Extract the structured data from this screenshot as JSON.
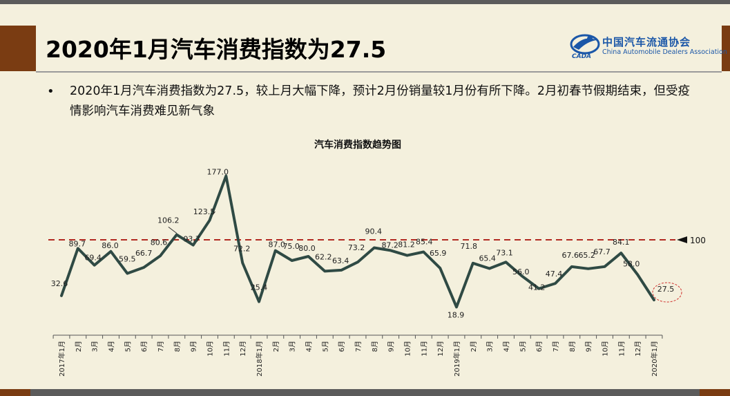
{
  "slide": {
    "title": "2020年1月汽车消费指数为27.5",
    "bullet": "2020年1月汽车消费指数为27.5，较上月大幅下降，预计2月份销量较1月份有所下降。2月初春节假期结束，但受疫情影响汽车消费难见新气象"
  },
  "logo": {
    "name_cn": "中国汽车流通协会",
    "name_en": "China Automobile Dealers Association",
    "abbr": "CADA",
    "color": "#1b57a8"
  },
  "chart_data": {
    "type": "line",
    "title": "汽车消费指数趋势图",
    "categories": [
      "2017年1月",
      "2月",
      "3月",
      "4月",
      "5月",
      "6月",
      "7月",
      "8月",
      "9月",
      "10月",
      "11月",
      "12月",
      "2018年1月",
      "2月",
      "3月",
      "4月",
      "5月",
      "6月",
      "7月",
      "8月",
      "9月",
      "10月",
      "11月",
      "12月",
      "2019年1月",
      "2月",
      "3月",
      "4月",
      "5月",
      "6月",
      "7月",
      "8月",
      "9月",
      "10月",
      "11月",
      "12月",
      "2020年1月"
    ],
    "values": [
      32.6,
      89.7,
      69.4,
      86.0,
      59.5,
      66.7,
      80.6,
      106.2,
      93.7,
      123.5,
      177.0,
      72.2,
      25.4,
      87.0,
      75.0,
      80.0,
      62.2,
      63.4,
      73.2,
      90.4,
      87.2,
      81.2,
      85.4,
      65.9,
      18.9,
      71.8,
      65.4,
      73.1,
      56.0,
      41.2,
      47.4,
      67.6,
      65.2,
      67.7,
      84.1,
      58.0,
      27.5
    ],
    "labels": [
      "32.6",
      "89.7",
      "69.4",
      "86.0",
      "59.5",
      "66.7",
      "80.6",
      "106.2",
      "93.7",
      "123.5",
      "177.0",
      "72.2",
      "25.4",
      "87.0",
      "75.0",
      "80.0",
      "62.2",
      "63.4",
      "73.2",
      "90.4",
      "87.2",
      "81.2",
      "85.4",
      "65.9",
      "18.9",
      "71.8",
      "65.4",
      "73.1",
      "56.0",
      "41.2",
      "47.4",
      "67.6",
      "65.2",
      "67.7",
      "84.1",
      "58.0",
      "27.5"
    ],
    "reference_line": {
      "value": 100,
      "label": "100",
      "color": "#b22a22",
      "style": "dashed"
    },
    "line_color": "#2f4a44",
    "highlight": {
      "index": 36,
      "color": "#d0312d",
      "style": "dashed-ellipse"
    },
    "ylim": [
      0,
      190
    ],
    "grid": false,
    "legend": "none"
  }
}
